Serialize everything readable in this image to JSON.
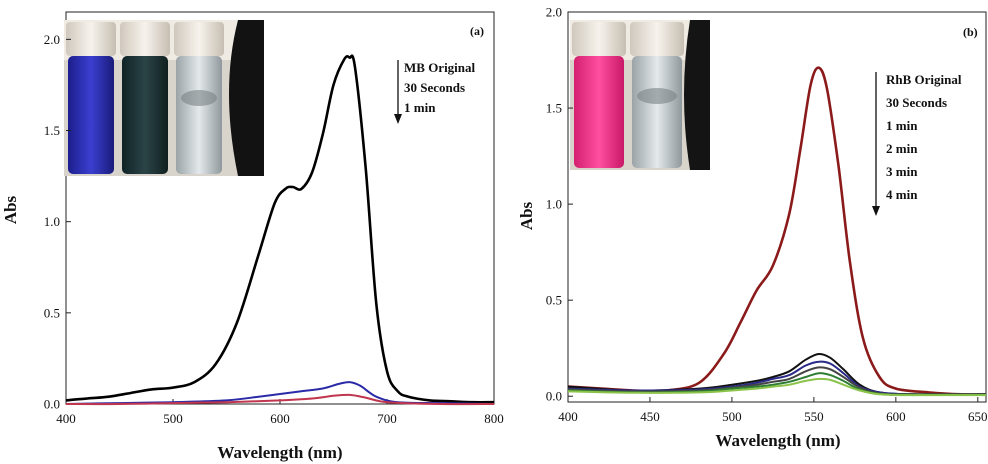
{
  "chart_data": [
    {
      "type": "line",
      "panel_label": "(a)",
      "xlabel": "Wavelength (nm)",
      "ylabel": "Abs",
      "xlim": [
        400,
        800
      ],
      "ylim": [
        0,
        2.15
      ],
      "xticks": [
        400,
        500,
        600,
        700,
        800
      ],
      "yticks": [
        0.0,
        0.5,
        1.0,
        1.5,
        2.0
      ],
      "xtick_labels": [
        "400",
        "500",
        "600",
        "700",
        "800"
      ],
      "ytick_labels": [
        "0.0",
        "0.5",
        "1.0",
        "1.5",
        "2.0"
      ],
      "legend_entries": [
        "MB Original",
        "30 Seconds",
        "1 min"
      ],
      "legend_placement": "top-right with downward arrow",
      "inset": "photo of vials: blue, dark green-black, clear",
      "series": [
        {
          "name": "MB Original",
          "color": "#000000",
          "x": [
            400,
            420,
            440,
            460,
            480,
            500,
            520,
            540,
            560,
            580,
            595,
            605,
            612,
            620,
            630,
            640,
            650,
            660,
            665,
            670,
            680,
            690,
            700,
            710,
            720,
            740,
            760,
            780,
            800
          ],
          "y": [
            0.02,
            0.03,
            0.04,
            0.06,
            0.08,
            0.09,
            0.12,
            0.22,
            0.45,
            0.82,
            1.1,
            1.18,
            1.19,
            1.18,
            1.27,
            1.48,
            1.75,
            1.89,
            1.9,
            1.85,
            1.3,
            0.55,
            0.18,
            0.07,
            0.04,
            0.02,
            0.015,
            0.01,
            0.01
          ]
        },
        {
          "name": "30 Seconds",
          "color": "#2b2ba8",
          "x": [
            400,
            450,
            500,
            550,
            580,
            600,
            620,
            640,
            655,
            665,
            675,
            690,
            710,
            750,
            800
          ],
          "y": [
            0.0,
            0.005,
            0.01,
            0.02,
            0.04,
            0.055,
            0.07,
            0.085,
            0.11,
            0.12,
            0.1,
            0.04,
            0.01,
            0.005,
            0.0
          ]
        },
        {
          "name": "1 min",
          "color": "#c0364e",
          "x": [
            400,
            450,
            500,
            550,
            600,
            630,
            650,
            665,
            680,
            700,
            750,
            800
          ],
          "y": [
            0.0,
            0.0,
            0.005,
            0.01,
            0.02,
            0.03,
            0.045,
            0.05,
            0.035,
            0.01,
            0.0,
            0.0
          ]
        }
      ]
    },
    {
      "type": "line",
      "panel_label": "(b)",
      "xlabel": "Wavelength (nm)",
      "ylabel": "Abs",
      "xlim": [
        400,
        655
      ],
      "ylim": [
        -0.03,
        2.0
      ],
      "xticks": [
        400,
        450,
        500,
        550,
        600,
        650
      ],
      "yticks": [
        0.0,
        0.5,
        1.0,
        1.5,
        2.0
      ],
      "xtick_labels": [
        "400",
        "450",
        "500",
        "550",
        "600",
        "650"
      ],
      "ytick_labels": [
        "0.0",
        "0.5",
        "1.0",
        "1.5",
        "2.0"
      ],
      "legend_entries": [
        "RhB Original",
        "30 Seconds",
        "1 min",
        "2 min",
        "3 min",
        "4 min"
      ],
      "legend_placement": "top-right with downward arrow",
      "inset": "photo of vials: pink, clear",
      "series": [
        {
          "name": "RhB Original",
          "color": "#8b1a1a",
          "x": [
            400,
            420,
            440,
            460,
            480,
            495,
            505,
            515,
            525,
            535,
            542,
            548,
            553,
            558,
            565,
            572,
            580,
            590,
            600,
            620,
            640,
            655
          ],
          "y": [
            0.05,
            0.04,
            0.03,
            0.03,
            0.07,
            0.22,
            0.38,
            0.55,
            0.68,
            0.95,
            1.3,
            1.62,
            1.71,
            1.6,
            1.2,
            0.7,
            0.3,
            0.1,
            0.04,
            0.02,
            0.01,
            0.01
          ]
        },
        {
          "name": "30 Seconds",
          "color": "#111111",
          "x": [
            400,
            440,
            480,
            500,
            515,
            525,
            535,
            545,
            553,
            560,
            568,
            578,
            590,
            610,
            655
          ],
          "y": [
            0.05,
            0.03,
            0.04,
            0.06,
            0.08,
            0.1,
            0.13,
            0.19,
            0.22,
            0.2,
            0.14,
            0.06,
            0.02,
            0.01,
            0.01
          ]
        },
        {
          "name": "1 min",
          "color": "#2a2a88",
          "x": [
            400,
            440,
            480,
            500,
            515,
            525,
            535,
            545,
            553,
            560,
            568,
            578,
            590,
            610,
            655
          ],
          "y": [
            0.04,
            0.03,
            0.035,
            0.05,
            0.07,
            0.09,
            0.11,
            0.16,
            0.18,
            0.17,
            0.12,
            0.05,
            0.02,
            0.01,
            0.01
          ]
        },
        {
          "name": "2 min",
          "color": "#444444",
          "x": [
            400,
            440,
            480,
            500,
            515,
            525,
            535,
            545,
            553,
            560,
            568,
            578,
            590,
            610,
            655
          ],
          "y": [
            0.035,
            0.025,
            0.03,
            0.045,
            0.06,
            0.075,
            0.09,
            0.13,
            0.15,
            0.14,
            0.1,
            0.045,
            0.015,
            0.01,
            0.01
          ]
        },
        {
          "name": "3 min",
          "color": "#2e7d32",
          "x": [
            400,
            440,
            480,
            500,
            515,
            525,
            535,
            545,
            553,
            560,
            568,
            578,
            590,
            610,
            655
          ],
          "y": [
            0.03,
            0.02,
            0.025,
            0.04,
            0.05,
            0.06,
            0.075,
            0.1,
            0.12,
            0.11,
            0.08,
            0.035,
            0.012,
            0.008,
            0.008
          ]
        },
        {
          "name": "4 min",
          "color": "#8bc34a",
          "x": [
            400,
            440,
            480,
            500,
            515,
            525,
            535,
            545,
            553,
            560,
            568,
            578,
            590,
            610,
            655
          ],
          "y": [
            0.025,
            0.018,
            0.02,
            0.03,
            0.04,
            0.05,
            0.06,
            0.08,
            0.09,
            0.085,
            0.06,
            0.03,
            0.01,
            0.006,
            0.006
          ]
        }
      ]
    }
  ]
}
